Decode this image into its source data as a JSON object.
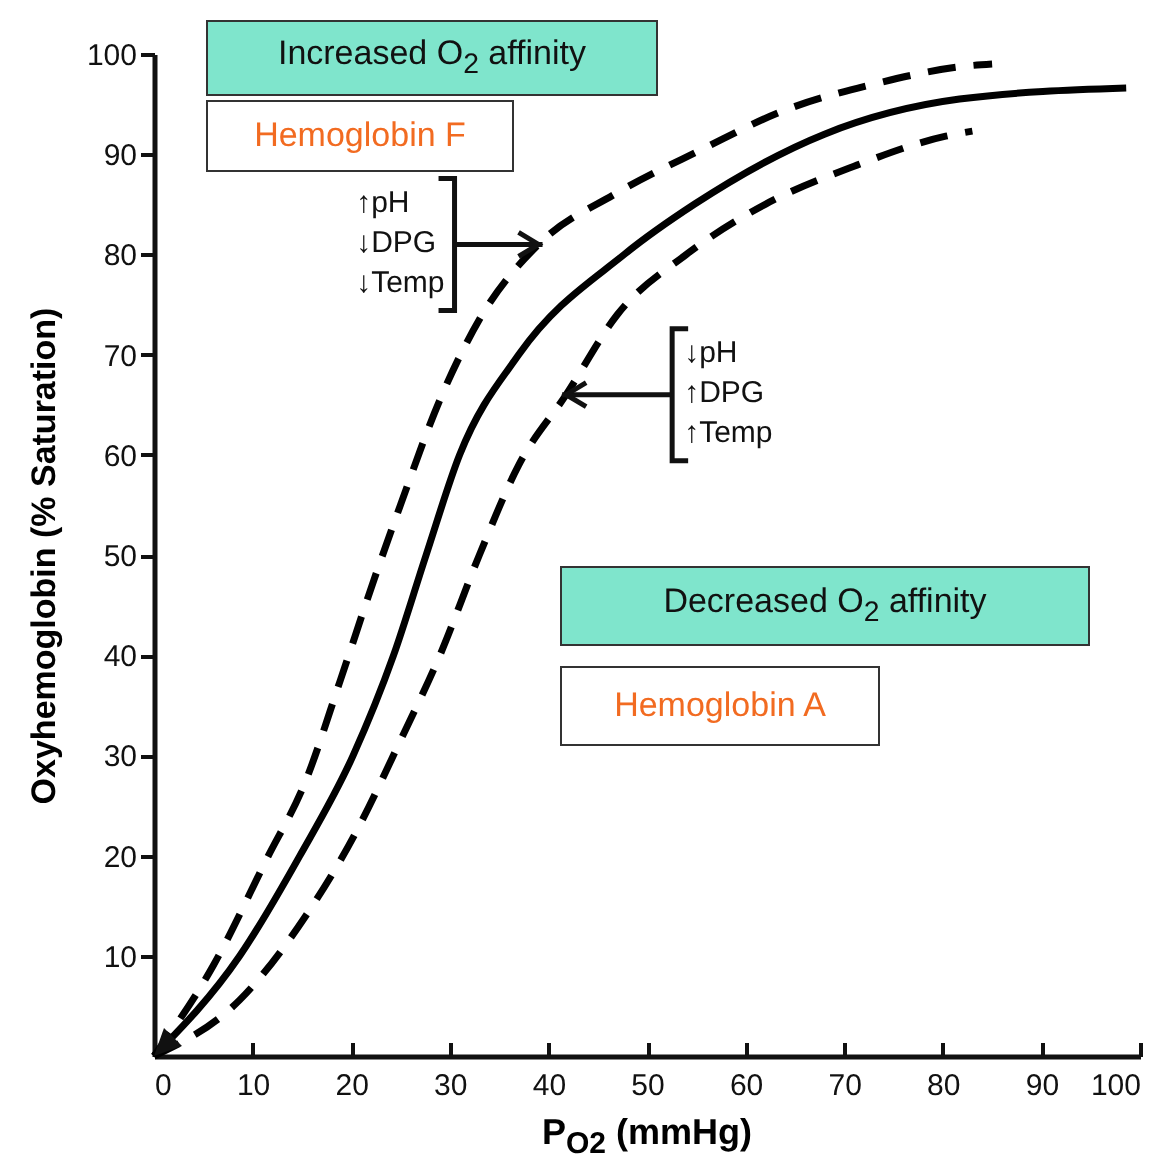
{
  "chart_data": {
    "type": "line",
    "xlabel": "P$_{O2}$ (mmHg)",
    "ylabel": "Oxyhemoglobin (% Saturation)",
    "xlim": [
      0,
      100
    ],
    "ylim": [
      0,
      100
    ],
    "xticks": [
      0,
      10,
      20,
      30,
      40,
      50,
      60,
      70,
      80,
      90,
      100
    ],
    "yticks": [
      10,
      20,
      30,
      40,
      50,
      60,
      70,
      80,
      90,
      100
    ],
    "series": [
      {
        "color": "#000000",
        "line_style": "solid",
        "x": [
          0,
          8.7,
          14.8,
          20.2,
          24.3,
          27.6,
          31,
          37,
          47.7,
          54.8,
          68,
          81.7,
          98.6
        ],
        "values": [
          0,
          10,
          20,
          30,
          40,
          50,
          60,
          70,
          80,
          85,
          92,
          95.5,
          96.6
        ]
      },
      {
        "color": "#000000",
        "line_style": "dashed",
        "x": [
          0,
          6,
          11.4,
          15.4,
          18.9,
          22.3,
          25,
          29,
          33,
          39,
          46.7,
          55.4,
          64,
          73,
          82.4,
          85
        ],
        "values": [
          0,
          9,
          19.6,
          27.5,
          37.5,
          47.5,
          55,
          65.5,
          73.5,
          81,
          86,
          90.4,
          94.4,
          97,
          98.8,
          99
        ]
      },
      {
        "color": "#000000",
        "line_style": "dashed",
        "x": [
          0,
          8.7,
          15.4,
          20.3,
          25,
          29,
          33,
          37,
          41.8,
          47,
          54,
          62,
          71,
          80.3,
          83
        ],
        "values": [
          0,
          5.6,
          14,
          22,
          31.5,
          40,
          50,
          59,
          66,
          74,
          80,
          85,
          88.8,
          91.8,
          92.3
        ]
      }
    ],
    "annotations": [
      "Increased O$_{2}$ affinity",
      "Hemoglobin F",
      {
        "text": "↑pH\n↓DPG\n↓Temp",
        "x": 39,
        "y": 81
      },
      {
        "text": "↓pH\n↑DPG\n↑Temp",
        "x": 41.8,
        "y": 66
      },
      "Decreased O$_{2}$ affinity",
      "Hemoglobin A"
    ]
  }
}
